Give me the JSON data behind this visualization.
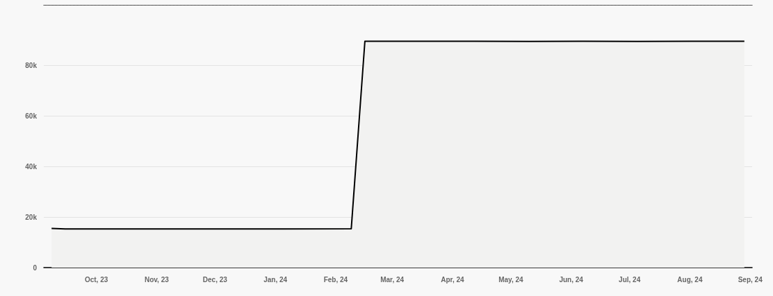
{
  "chart_data": {
    "type": "area",
    "x": [
      "2023-09-08",
      "2023-09-15",
      "2023-10-13",
      "2023-11-10",
      "2023-12-08",
      "2024-01-05",
      "2024-02-09",
      "2024-02-16",
      "2024-03-15",
      "2024-04-12",
      "2024-05-10",
      "2024-06-07",
      "2024-07-05",
      "2024-08-02",
      "2024-08-29"
    ],
    "series": [
      {
        "color": "#000000",
        "values": [
          15500,
          15300,
          15300,
          15300,
          15300,
          15300,
          15400,
          89600,
          89600,
          89600,
          89500,
          89600,
          89500,
          89600,
          89600
        ]
      }
    ],
    "xlim": [
      "2023-09-04",
      "2024-09-02"
    ],
    "xticks": [
      {
        "value": "2023-10-01",
        "label": "Oct, 23"
      },
      {
        "value": "2023-11-01",
        "label": "Nov, 23"
      },
      {
        "value": "2023-12-01",
        "label": "Dec, 23"
      },
      {
        "value": "2024-01-01",
        "label": "Jan, 24"
      },
      {
        "value": "2024-02-01",
        "label": "Feb, 24"
      },
      {
        "value": "2024-03-01",
        "label": "Mar, 24"
      },
      {
        "value": "2024-04-01",
        "label": "Apr, 24"
      },
      {
        "value": "2024-05-01",
        "label": "May, 24"
      },
      {
        "value": "2024-06-01",
        "label": "Jun, 24"
      },
      {
        "value": "2024-07-01",
        "label": "Jul, 24"
      },
      {
        "value": "2024-08-01",
        "label": "Aug, 24"
      },
      {
        "value": "2024-09-01",
        "label": "Sep, 24"
      }
    ],
    "ylim": [
      0,
      104000
    ],
    "yticks": [
      {
        "value": 0,
        "label": "0"
      },
      {
        "value": 20000,
        "label": "20k"
      },
      {
        "value": 40000,
        "label": "40k"
      },
      {
        "value": 60000,
        "label": "60k"
      },
      {
        "value": 80000,
        "label": "80k"
      }
    ],
    "grid": "y",
    "marker": "none"
  }
}
